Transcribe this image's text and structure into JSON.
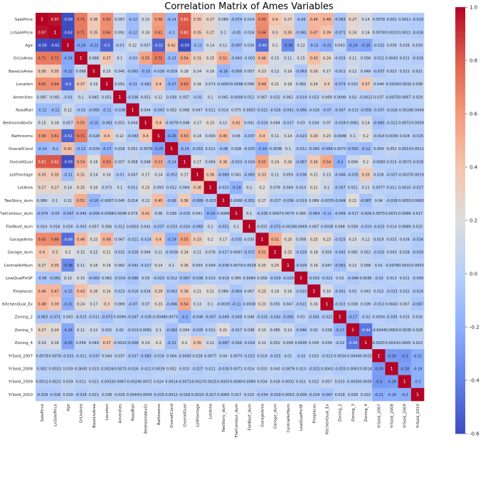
{
  "chart_data": {
    "type": "heatmap",
    "title": "Correlation Matrix of Ames Variables",
    "labels": [
      "SalePrice",
      "LnSalePrice",
      "Age",
      "GrLivArea",
      "BaseLivArea",
      "Location",
      "Amenities",
      "RoadRail",
      "BedroomAbvGr",
      "Bathrooms",
      "OverallCond",
      "OverallQual",
      "LotFrontage",
      "LotArea",
      "TwoStory_dum",
      "FlatContour_dum",
      "FlatRoof_dum",
      "GarageArea",
      "Garage_dum",
      "CentralAirNum",
      "LowQualFinSF",
      "Fireplaces",
      "KitchenQual_Ex",
      "Zoning_2",
      "Zoning_3",
      "Zoning_4",
      "YrSold_2007",
      "YrSold_2008",
      "YrSold_2009",
      "YrSold_2010"
    ],
    "upper": [
      [
        0.97,
        -0.59,
        0.71,
        0.36,
        0.65,
        0.087,
        -0.12,
        0.15,
        0.58,
        -0.14,
        0.81,
        0.35,
        0.27,
        0.089,
        -0.074,
        0.014,
        0.65,
        0.4,
        0.27,
        -0.06,
        0.46,
        0.48,
        -0.063,
        0.27,
        0.14,
        0.0078,
        0.002,
        0.0011,
        -0.029
      ],
      [
        -0.62,
        0.71,
        0.35,
        0.64,
        0.091,
        -0.12,
        0.18,
        0.61,
        -0.1,
        0.82,
        0.35,
        0.27,
        0.1,
        -0.05,
        0.016,
        0.66,
        0.3,
        0.35,
        -0.061,
        0.47,
        0.39,
        -0.071,
        0.24,
        0.16,
        0.0078,
        0.0023,
        0.0021,
        -0.026
      ],
      [
        -0.24,
        -0.22,
        -0.5,
        -0.01,
        0.12,
        0.057,
        -0.51,
        0.42,
        -0.59,
        -0.11,
        0.14,
        0.11,
        -0.097,
        0.026,
        -0.48,
        0.2,
        -0.36,
        0.12,
        -0.15,
        -0.21,
        0.043,
        -0.24,
        -0.25,
        -0.033,
        0.039,
        0.039,
        0.039
      ],
      [
        0.068,
        0.37,
        0.1,
        -0.03,
        0.55,
        0.71,
        -0.13,
        0.54,
        0.31,
        0.25,
        0.51,
        -0.043,
        -0.003,
        0.46,
        0.15,
        0.11,
        0.15,
        0.43,
        0.24,
        -0.015,
        0.11,
        0.056,
        -0.011,
        0.0043,
        0.011,
        -0.024
      ],
      [
        0.15,
        0.045,
        -0.065,
        -0.15,
        -0.028,
        -0.029,
        0.18,
        0.14,
        0.16,
        -0.16,
        -0.056,
        0.057,
        0.23,
        0.12,
        0.16,
        -0.063,
        0.26,
        0.17,
        -0.011,
        0.12,
        0.049,
        -0.037,
        0.023,
        0.021,
        0.021
      ],
      [
        0.051,
        -0.11,
        -0.061,
        0.4,
        -0.17,
        0.63,
        0.16,
        0.073,
        -0.0087,
        -0.0098,
        0.056,
        0.49,
        0.21,
        0.18,
        0.062,
        0.24,
        0.3,
        -0.073,
        0.032,
        0.37,
        0.044,
        -0.0026,
        -0.0032,
        0.038
      ],
      [
        -0.036,
        0.051,
        0.12,
        0.018,
        0.057,
        -0.01,
        0.1,
        0.045,
        -0.0006,
        0.012,
        0.067,
        0.032,
        0.062,
        -0.019,
        0.023,
        0.069,
        0.0099,
        0.02,
        -0.0022,
        0.037,
        -0.0075,
        0.0067,
        0.029,
        -0.012
      ],
      [
        0.044,
        -0.043,
        0.052,
        0.068,
        0.047,
        0.011,
        0.014,
        0.075,
        0.0055,
        -0.021,
        -0.026,
        -0.041,
        -0.066,
        -0.016,
        -0.07,
        -0.047,
        -0.013,
        -0.058,
        -0.037,
        -0.016,
        -0.0024,
        0.0044,
        0.0016,
        0.006
      ],
      [
        0.4,
        -0.0078,
        0.048,
        0.17,
        0.23,
        0.12,
        0.42,
        0.041,
        -0.024,
        0.084,
        -0.017,
        0.03,
        0.034,
        0.07,
        -0.028,
        0.0081,
        0.14,
        -0.083,
        -0.012,
        0.0072,
        0.0059,
        0.0038,
        0.011
      ],
      [
        -0.25,
        0.53,
        0.14,
        0.093,
        0.45,
        0.06,
        -0.037,
        0.4,
        0.11,
        0.14,
        -0.023,
        0.29,
        0.23,
        -0.0046,
        0.1,
        0.2,
        -0.014,
        0.0039,
        0.024,
        -0.015
      ],
      [
        -0.14,
        -0.052,
        0.012,
        -0.06,
        0.028,
        -0.033,
        -0.19,
        -0.0036,
        0.1,
        -0.012,
        -0.042,
        -0.066,
        0.0073,
        -0.092,
        -0.12,
        0.004,
        0.052,
        0.0014,
        0.0012
      ],
      [
        0.17,
        0.064,
        0.36,
        -0.033,
        -0.024,
        0.55,
        0.24,
        0.26,
        -0.067,
        0.36,
        0.54,
        -0.2,
        0.094,
        0.2,
        -0.0065,
        0.015,
        -0.0072,
        -0.018
      ],
      [
        0.36,
        -0.089,
        0.041,
        -0.065,
        0.33,
        0.11,
        0.059,
        -0.036,
        0.21,
        0.13,
        -0.046,
        -0.035,
        0.35,
        0.028,
        -0.027,
        -0.0027,
        0.0019
      ],
      [
        -0.023,
        -0.19,
        0.1,
        0.2,
        0.078,
        0.049,
        0.013,
        0.21,
        0.1,
        -0.057,
        0.021,
        0.11,
        0.0077,
        0.011,
        0.0025,
        -0.017
      ],
      [
        0.0068,
        -0.051,
        0.17,
        -0.017,
        -0.036,
        -0.019,
        0.089,
        -0.0035,
        -0.049,
        0.21,
        -0.087,
        0.04,
        -0.028,
        0.0055,
        0.0065
      ],
      [
        0.1,
        -0.035,
        0.0097,
        0.0079,
        0.065,
        -0.064,
        -0.11,
        -0.049,
        -0.017,
        -0.026,
        0.0075,
        0.0071,
        0.0089,
        0.017
      ],
      [
        0.035,
        -0.072,
        -0.0028,
        0.0069,
        0.067,
        0.0038,
        0.048,
        0.038,
        -0.019,
        -0.023,
        0.014,
        0.0089,
        0.015
      ],
      [
        0.51,
        0.25,
        0.058,
        0.25,
        0.23,
        -0.025,
        0.15,
        0.12,
        0.019,
        0.033,
        0.034,
        -0.034
      ],
      [
        0.25,
        -0.029,
        0.18,
        0.055,
        -0.042,
        0.085,
        0.052,
        -0.025,
        0.043,
        0.028,
        -0.029
      ],
      [
        -0.029,
        0.16,
        0.047,
        -0.091,
        0.12,
        0.058,
        0.01,
        -0.0076,
        0.0032,
        0.0053
      ],
      [
        -0.015,
        -0.021,
        0.03,
        -0.046,
        0.0095,
        -0.02,
        0.013,
        0.011,
        -0.009
      ],
      [
        0.16,
        -0.041,
        0.02,
        0.043,
        0.015,
        -0.023,
        0.022,
        -0.024
      ],
      [
        -0.022,
        0.038,
        0.039,
        -0.013,
        0.0043,
        0.057,
        -0.067
      ],
      [
        -0.17,
        -0.02,
        0.0034,
        -0.035,
        0.015,
        0.016
      ],
      [
        -0.44,
        -0.0044,
        0.0063,
        -0.0035,
        0.028
      ],
      [
        0.0025,
        0.0014,
        0.0005,
        0.022
      ],
      [
        -0.29,
        -0.3,
        -0.21
      ],
      [
        -0.28,
        -0.19
      ],
      [
        -0.2
      ]
    ],
    "vmin": -0.6,
    "vmax": 1.0,
    "colorbar_ticks": [
      1.0,
      0.8,
      0.6,
      0.4,
      0.2,
      0.0,
      -0.2,
      -0.4,
      -0.6
    ],
    "colormap": "coolwarm",
    "grid": false,
    "legend": "colorbar-right"
  }
}
